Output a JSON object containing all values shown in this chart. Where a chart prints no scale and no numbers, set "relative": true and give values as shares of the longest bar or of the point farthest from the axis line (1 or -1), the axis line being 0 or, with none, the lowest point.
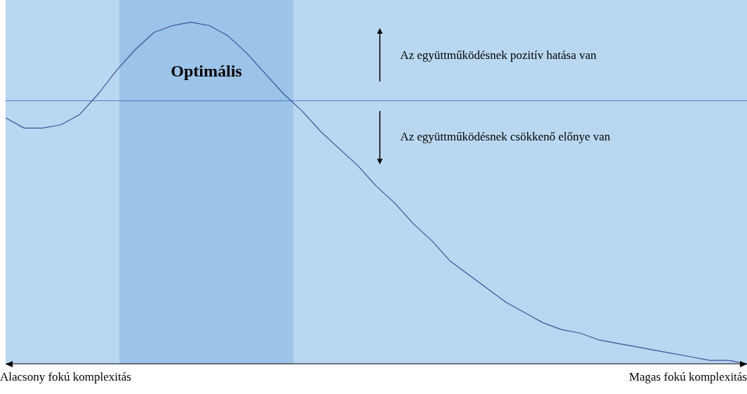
{
  "chart_data": {
    "type": "line",
    "relative": true,
    "grid": false,
    "legend": false,
    "marker": "none",
    "line_style": "solid",
    "categories": [
      null,
      null,
      null,
      null,
      null,
      null,
      null,
      null,
      null,
      null,
      null,
      null,
      null,
      null,
      null,
      null,
      null,
      null,
      null,
      null,
      null,
      null,
      null,
      null,
      null,
      null,
      null,
      null,
      null,
      null,
      null,
      null,
      null,
      null,
      null,
      null,
      null,
      null,
      null,
      null,
      null
    ],
    "series": [
      {
        "color": "#3f4f9c",
        "values": [
          0.72,
          0.69,
          0.69,
          0.7,
          0.73,
          0.79,
          0.86,
          0.92,
          0.97,
          0.99,
          1,
          0.99,
          0.96,
          0.91,
          0.85,
          0.79,
          0.74,
          0.68,
          0.63,
          0.58,
          0.52,
          0.47,
          0.41,
          0.36,
          0.3,
          0.26,
          0.22,
          0.18,
          0.15,
          0.12,
          0.1,
          0.09,
          0.07,
          0.06,
          0.05,
          0.04,
          0.03,
          0.02,
          0.01,
          0.01,
          0.0
        ]
      }
    ],
    "ref_lines": [
      {
        "axis": "y",
        "value": 0.77,
        "color": "#4a7fc8"
      }
    ],
    "annotations": [
      "Optimális",
      "Az együttműködésnek pozitív hatása van",
      "Az együttműködésnek csökkenő előnye van",
      "Alacsony fokú komplexitás",
      "Magas fokú komplexitás"
    ]
  }
}
